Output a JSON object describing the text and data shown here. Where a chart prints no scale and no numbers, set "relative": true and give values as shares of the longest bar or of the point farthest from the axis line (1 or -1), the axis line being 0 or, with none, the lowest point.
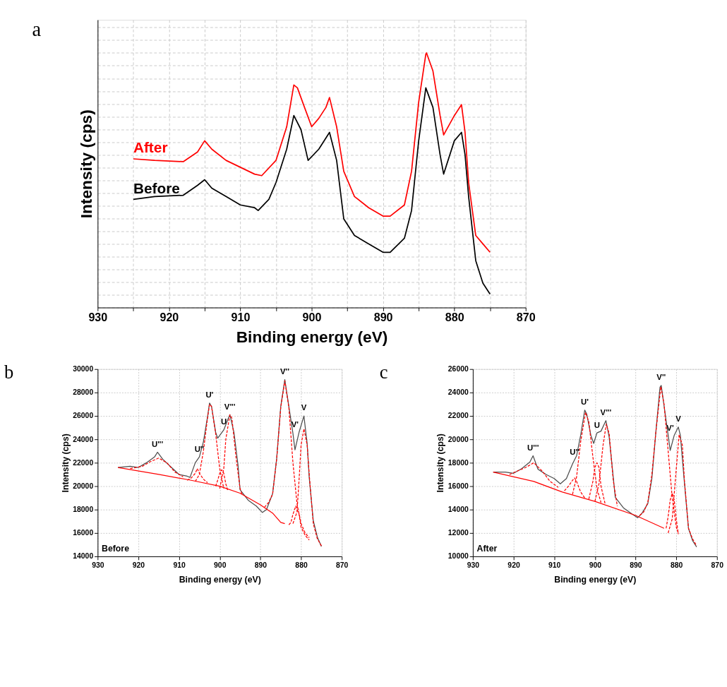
{
  "chart_data": [
    {
      "type": "line",
      "title": "a",
      "xlabel": "Binding energy (eV)",
      "ylabel": "Intensity (cps)",
      "relative": true,
      "grid": true,
      "legend": "left",
      "xlim": [
        930,
        870
      ],
      "xticks": [
        930,
        {
          "value": 925,
          "label": null
        },
        920,
        {
          "value": 915,
          "label": null
        },
        910,
        {
          "value": 905,
          "label": null
        },
        900,
        {
          "value": 895,
          "label": null
        },
        890,
        {
          "value": 885,
          "label": null
        },
        880,
        {
          "value": 875,
          "label": null
        },
        870
      ],
      "series": [
        {
          "name": "After",
          "color": "#ff0000",
          "x": [
            925,
            922,
            918,
            916,
            915,
            914,
            912,
            910,
            908,
            907,
            905,
            903.5,
            902.5,
            902,
            901,
            900,
            899,
            898,
            897.5,
            896.5,
            895.5,
            894,
            892,
            890,
            889,
            887,
            886,
            885,
            884,
            883.9,
            883,
            882,
            881.5,
            880,
            879,
            878.5,
            878,
            877,
            876,
            875
          ],
          "values": [
            0.584,
            0.578,
            0.573,
            0.611,
            0.655,
            0.622,
            0.578,
            0.551,
            0.524,
            0.518,
            0.578,
            0.71,
            0.874,
            0.863,
            0.786,
            0.71,
            0.743,
            0.786,
            0.825,
            0.71,
            0.535,
            0.436,
            0.392,
            0.359,
            0.359,
            0.403,
            0.535,
            0.807,
            0.995,
            1,
            0.929,
            0.754,
            0.678,
            0.754,
            0.797,
            0.688,
            0.491,
            0.283,
            0.25,
            0.217
          ]
        },
        {
          "name": "Before",
          "color": "#000000",
          "x": [
            925,
            922,
            918,
            916,
            915,
            914,
            912,
            910,
            908,
            907.5,
            906,
            905,
            903.5,
            902.5,
            901.5,
            900.5,
            899,
            897.5,
            896.5,
            895.5,
            894,
            892,
            890,
            889,
            887,
            886,
            885,
            884,
            883,
            882,
            881.5,
            880,
            879,
            878.5,
            878,
            877,
            876,
            875
          ],
          "values": [
            0.425,
            0.436,
            0.441,
            0.48,
            0.502,
            0.469,
            0.436,
            0.403,
            0.392,
            0.381,
            0.425,
            0.491,
            0.622,
            0.754,
            0.699,
            0.578,
            0.622,
            0.688,
            0.578,
            0.348,
            0.283,
            0.25,
            0.217,
            0.217,
            0.272,
            0.381,
            0.655,
            0.863,
            0.786,
            0.6,
            0.524,
            0.655,
            0.688,
            0.6,
            0.436,
            0.184,
            0.096,
            0.053
          ]
        }
      ]
    },
    {
      "type": "line",
      "title": "b",
      "xlabel": "Binding energy (eV)",
      "ylabel": "Intensity (cps)",
      "grid": true,
      "xlim": [
        930,
        870
      ],
      "xticks": [
        930,
        920,
        910,
        900,
        890,
        880,
        870
      ],
      "ylim": [
        14000,
        30000
      ],
      "yticks": [
        14000,
        16000,
        18000,
        20000,
        22000,
        24000,
        26000,
        28000,
        30000
      ],
      "annotations": [
        "Before",
        {
          "text": "U'''",
          "x": 915.3,
          "y": 22900
        },
        {
          "text": "U''",
          "x": 905,
          "y": 22500
        },
        {
          "text": "U'",
          "x": 902.5,
          "y": 27100
        },
        {
          "text": "U",
          "x": 899,
          "y": 24800
        },
        {
          "text": "V'''",
          "x": 897.5,
          "y": 26100
        },
        {
          "text": "V''",
          "x": 884,
          "y": 29100
        },
        {
          "text": "V'",
          "x": 881.5,
          "y": 24600
        },
        {
          "text": "V",
          "x": 879.3,
          "y": 26000
        }
      ],
      "series": [
        {
          "color": "#4d4d4d",
          "x": [
            925,
            922,
            920,
            918,
            916,
            915.3,
            914,
            912,
            910,
            908,
            907.3,
            906,
            905,
            904,
            903,
            902.5,
            902,
            901,
            900.5,
            899,
            898,
            897.5,
            896.5,
            895.5,
            895,
            893,
            891,
            889.5,
            888.5,
            887,
            886,
            885,
            884,
            883,
            882,
            881.5,
            880.5,
            879.3,
            878.5,
            878,
            877,
            876,
            875
          ],
          "values": [
            21600,
            21700,
            21600,
            22000,
            22500,
            22900,
            22300,
            21650,
            21000,
            20850,
            20750,
            22000,
            22500,
            23800,
            25900,
            27100,
            26800,
            24600,
            24100,
            24800,
            25700,
            26100,
            24600,
            21800,
            19700,
            18800,
            18300,
            17750,
            18000,
            19350,
            22350,
            26800,
            29100,
            26800,
            24500,
            23100,
            24600,
            26000,
            23600,
            20750,
            17050,
            15650,
            14850
          ]
        },
        {
          "color": "#ff0000",
          "x": [
            925,
            915,
            907,
            900,
            895,
            890,
            887,
            885,
            884
          ],
          "values": [
            21600,
            21000,
            20500,
            20000,
            19400,
            18400,
            17700,
            16900,
            16800
          ]
        },
        {
          "color": "#ff0000",
          "line_style": "dashed",
          "x": [
            922,
            919,
            917,
            915,
            913,
            911,
            909
          ],
          "values": [
            21500,
            21700,
            22100,
            22400,
            22000,
            21200,
            20800
          ]
        },
        {
          "color": "#ff0000",
          "line_style": "dashed",
          "x": [
            908,
            907,
            906,
            905.5,
            905,
            904,
            903
          ],
          "values": [
            20500,
            20700,
            21100,
            21500,
            21100,
            20600,
            20300
          ]
        },
        {
          "color": "#ff0000",
          "line_style": "dashed",
          "x": [
            906,
            905,
            904,
            903,
            902.5,
            902,
            901,
            900,
            899
          ],
          "values": [
            20400,
            21000,
            23000,
            25800,
            27000,
            26800,
            24500,
            21500,
            19800
          ]
        },
        {
          "color": "#ff0000",
          "line_style": "dashed",
          "x": [
            901,
            900.5,
            900,
            899.5,
            899,
            898.5,
            898
          ],
          "values": [
            20000,
            20500,
            21100,
            21400,
            21100,
            20200,
            19600
          ]
        },
        {
          "color": "#ff0000",
          "line_style": "dashed",
          "x": [
            900,
            899,
            898.5,
            897.5,
            897,
            896,
            895,
            894.5
          ],
          "values": [
            19800,
            21500,
            24000,
            26100,
            25800,
            22500,
            19800,
            19300
          ]
        },
        {
          "color": "#ff0000",
          "line_style": "dashed",
          "x": [
            889,
            888,
            887,
            886,
            885,
            884,
            883,
            882,
            881,
            880,
            879,
            878
          ],
          "values": [
            18200,
            18600,
            19300,
            22300,
            26700,
            29000,
            26700,
            22000,
            18500,
            16800,
            16000,
            15600
          ]
        },
        {
          "color": "#ff0000",
          "line_style": "dashed",
          "x": [
            883,
            882.5,
            882,
            881.3,
            880.5,
            880,
            879,
            878
          ],
          "values": [
            16700,
            16900,
            17600,
            18300,
            17600,
            16500,
            15800,
            15400
          ]
        },
        {
          "color": "#ff0000",
          "line_style": "dashed",
          "x": [
            882,
            881,
            880.5,
            880,
            879.3,
            878.5,
            878,
            877,
            876,
            875
          ],
          "values": [
            16800,
            17800,
            20500,
            23500,
            24900,
            23500,
            21000,
            16800,
            15500,
            14900
          ]
        }
      ]
    },
    {
      "type": "line",
      "title": "c",
      "xlabel": "Binding energy (eV)",
      "ylabel": "Intensity (cps)",
      "grid": true,
      "xlim": [
        930,
        870
      ],
      "xticks": [
        930,
        920,
        910,
        900,
        890,
        880,
        870
      ],
      "ylim": [
        10000,
        26000
      ],
      "yticks": [
        10000,
        12000,
        14000,
        16000,
        18000,
        20000,
        22000,
        24000,
        26000
      ],
      "annotations": [
        "After",
        {
          "text": "U'''",
          "x": 915.2,
          "y": 18600
        },
        {
          "text": "U''",
          "x": 905,
          "y": 18250
        },
        {
          "text": "U'",
          "x": 902.5,
          "y": 22500
        },
        {
          "text": "U",
          "x": 899.5,
          "y": 20550
        },
        {
          "text": "V'''",
          "x": 897.3,
          "y": 21600
        },
        {
          "text": "V''",
          "x": 883.7,
          "y": 24600
        },
        {
          "text": "V'",
          "x": 881.5,
          "y": 20300
        },
        {
          "text": "V",
          "x": 879.5,
          "y": 21050
        }
      ],
      "series": [
        {
          "color": "#4d4d4d",
          "x": [
            925,
            922,
            920,
            918,
            916,
            915.2,
            914,
            912,
            910,
            908.5,
            907,
            905.5,
            905,
            904.5,
            903.5,
            902.5,
            902,
            901,
            900.3,
            899.5,
            898.5,
            897.3,
            896.5,
            895.5,
            895,
            893,
            891,
            889.5,
            888.5,
            887,
            886,
            885,
            884,
            883.7,
            883,
            882,
            881.5,
            880.5,
            879.5,
            879,
            878,
            877,
            876,
            875
          ],
          "values": [
            17200,
            17200,
            17100,
            17500,
            18050,
            18600,
            17450,
            17000,
            16650,
            16200,
            16650,
            17900,
            18250,
            18600,
            20350,
            22500,
            22150,
            20350,
            19650,
            20550,
            20700,
            21600,
            20200,
            16800,
            15050,
            14150,
            13650,
            13300,
            13650,
            14500,
            16650,
            20700,
            24450,
            24600,
            22850,
            20350,
            19050,
            20350,
            21050,
            20350,
            16300,
            12400,
            11350,
            10800
          ]
        },
        {
          "color": "#ff0000",
          "x": [
            925,
            915,
            908,
            900,
            890,
            883
          ],
          "values": [
            17200,
            16400,
            15500,
            14700,
            13500,
            12400
          ]
        },
        {
          "color": "#ff0000",
          "line_style": "dashed",
          "x": [
            921,
            919,
            917,
            915,
            913,
            911,
            909
          ],
          "values": [
            17000,
            17300,
            17600,
            18000,
            17300,
            16400,
            15900
          ]
        },
        {
          "color": "#ff0000",
          "line_style": "dashed",
          "x": [
            907.5,
            906.5,
            905.5,
            905,
            904.5,
            903.5,
            902.5
          ],
          "values": [
            15600,
            16000,
            16500,
            16700,
            16400,
            15500,
            15000
          ]
        },
        {
          "color": "#ff0000",
          "line_style": "dashed",
          "x": [
            905.5,
            904.5,
            903.5,
            902.3,
            901.5,
            900.5,
            899.5,
            898.5
          ],
          "values": [
            15300,
            16800,
            19800,
            22300,
            21500,
            18500,
            15800,
            14600
          ]
        },
        {
          "color": "#ff0000",
          "line_style": "dashed",
          "x": [
            901.5,
            900.5,
            900,
            899.5,
            899,
            898.5,
            897.5
          ],
          "values": [
            14900,
            16400,
            17600,
            18000,
            17600,
            16000,
            14500
          ]
        },
        {
          "color": "#ff0000",
          "line_style": "dashed",
          "x": [
            900,
            899,
            898,
            897.2,
            896.5,
            895.5,
            894.5
          ],
          "values": [
            14700,
            16200,
            19500,
            21300,
            20500,
            16500,
            14300
          ]
        },
        {
          "color": "#ff0000",
          "line_style": "dashed",
          "x": [
            889,
            888,
            887,
            886,
            885,
            883.8,
            883,
            882,
            881,
            880,
            879.5
          ],
          "values": [
            13500,
            13800,
            14600,
            17000,
            20700,
            24500,
            23000,
            19000,
            15000,
            12500,
            12000
          ]
        },
        {
          "color": "#ff0000",
          "line_style": "dashed",
          "x": [
            882.5,
            882,
            881.5,
            881,
            880.5,
            880,
            879.5
          ],
          "values": [
            12400,
            13400,
            14800,
            15400,
            14800,
            13200,
            11900
          ]
        },
        {
          "color": "#ff0000",
          "line_style": "dashed",
          "x": [
            882,
            881,
            880,
            879.3,
            878.5,
            878,
            877,
            876,
            875
          ],
          "values": [
            12000,
            13200,
            17500,
            20400,
            19500,
            16500,
            12400,
            11500,
            10900
          ]
        }
      ]
    }
  ]
}
